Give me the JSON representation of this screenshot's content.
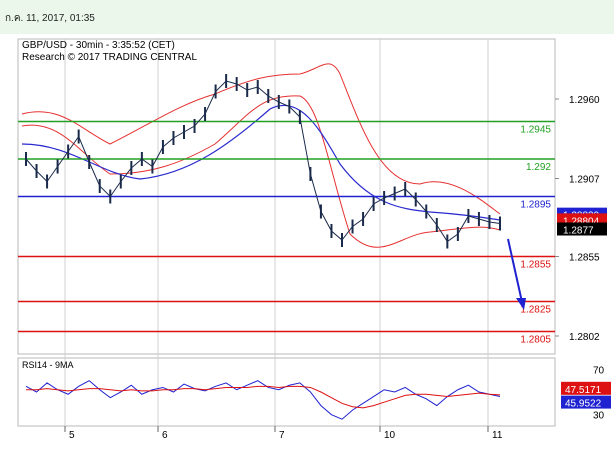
{
  "header": {
    "timestamp": "ก.ค. 11, 2017, 01:35"
  },
  "chart_data": {
    "type": "line",
    "title": "GBP/USD - 30min - 3:35:52 (CET)",
    "subtitle": "Research © 2017 TRADING CENTRAL",
    "price_axis_ticks": [
      "1.2960",
      "1.2907",
      "1.2855",
      "1.2802"
    ],
    "x_tick_labels": [
      "5",
      "6",
      "7",
      "10",
      "11"
    ],
    "ylim": [
      1.279,
      1.3
    ],
    "levels": [
      {
        "label": "1.2945",
        "value": 1.2945,
        "color": "#22a022"
      },
      {
        "label": "1.292",
        "value": 1.292,
        "color": "#22a022"
      },
      {
        "label": "1.2895",
        "value": 1.2895,
        "color": "#1f22d0"
      },
      {
        "label": "1.2855",
        "value": 1.2855,
        "color": "#dd1111"
      },
      {
        "label": "1.2825",
        "value": 1.2825,
        "color": "#dd1111"
      },
      {
        "label": "1.2805",
        "value": 1.2805,
        "color": "#dd1111"
      }
    ],
    "price_badges": [
      {
        "label": "1.28829",
        "bg": "#1f22d0",
        "fg": "#ffffff"
      },
      {
        "label": "1.28804",
        "bg": "#dd1111",
        "fg": "#ffffff"
      },
      {
        "label": "1.2877",
        "bg": "#000000",
        "fg": "#ffffff"
      }
    ],
    "price_series": [
      1.292,
      1.2912,
      1.2905,
      1.2915,
      1.2925,
      1.2935,
      1.2918,
      1.2902,
      1.2895,
      1.2905,
      1.2914,
      1.292,
      1.2915,
      1.2928,
      1.2934,
      1.2938,
      1.2942,
      1.295,
      1.2965,
      1.2972,
      1.297,
      1.2966,
      1.2968,
      1.2962,
      1.2958,
      1.2955,
      1.2948,
      1.291,
      1.2885,
      1.2872,
      1.2866,
      1.2875,
      1.288,
      1.289,
      1.2894,
      1.2897,
      1.29,
      1.2893,
      1.2885,
      1.2876,
      1.2865,
      1.287,
      1.2882,
      1.288,
      1.2878,
      1.2877
    ],
    "rsi": {
      "label": "RSI14 - 9MA",
      "ticks": [
        "70",
        "30"
      ],
      "badges": [
        {
          "label": "47.5171",
          "bg": "#dd1111",
          "fg": "#ffffff"
        },
        {
          "label": "45.9522",
          "bg": "#1f22d0",
          "fg": "#ffffff"
        }
      ],
      "ylim": [
        20,
        80
      ],
      "values": [
        55,
        50,
        58,
        52,
        48,
        55,
        60,
        52,
        45,
        50,
        56,
        48,
        52,
        54,
        50,
        57,
        53,
        51,
        55,
        58,
        52,
        56,
        60,
        54,
        52,
        56,
        58,
        50,
        38,
        30,
        26,
        34,
        40,
        46,
        52,
        50,
        54,
        48,
        44,
        38,
        46,
        52,
        56,
        50,
        48,
        46
      ],
      "ma": [
        52,
        52,
        53,
        52,
        51,
        52,
        53,
        53,
        52,
        51,
        52,
        51,
        51,
        52,
        52,
        53,
        53,
        52,
        53,
        54,
        54,
        54,
        55,
        55,
        54,
        55,
        55,
        54,
        50,
        45,
        40,
        37,
        36,
        38,
        41,
        44,
        47,
        48,
        48,
        47,
        46,
        47,
        48,
        49,
        48,
        47.5
      ]
    }
  }
}
